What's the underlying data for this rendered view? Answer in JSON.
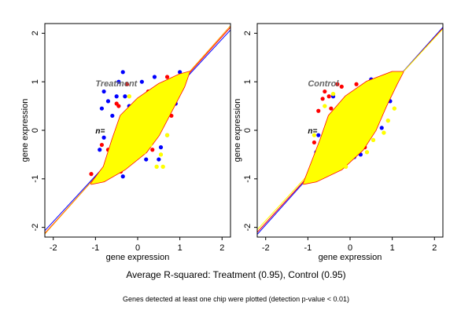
{
  "caption_main": "Average R-squared: Treatment (0.95), Control (0.95)",
  "caption_sub": "Genes detected at least one chip were plotted (detection p-value < 0.01)",
  "chart_data": [
    {
      "type": "scatter",
      "title": "Treatment",
      "annotation": "n=",
      "xlabel": "gene expression",
      "ylabel": "gene expression",
      "xlim": [
        -2.2,
        2.2
      ],
      "ylim": [
        -2.2,
        2.2
      ],
      "xticks": [
        -2,
        -1,
        0,
        1,
        2
      ],
      "yticks": [
        -2,
        -1,
        0,
        1,
        2
      ],
      "grid": false,
      "core_color": "#ffff00",
      "core_outline_color": "#ff0000",
      "core_region": [
        [
          -1.1,
          -1.1
        ],
        [
          -0.8,
          -0.75
        ],
        [
          -0.6,
          -0.2
        ],
        [
          -0.4,
          0.3
        ],
        [
          0,
          0.65
        ],
        [
          0.5,
          0.95
        ],
        [
          1.0,
          1.15
        ],
        [
          1.22,
          1.2
        ],
        [
          1.1,
          0.9
        ],
        [
          0.8,
          0.4
        ],
        [
          0.5,
          -0.1
        ],
        [
          0.2,
          -0.45
        ],
        [
          -0.3,
          -0.8
        ],
        [
          -0.8,
          -1.05
        ]
      ],
      "series": [
        {
          "color": "#0000ff",
          "points": [
            [
              -0.35,
              1.2
            ],
            [
              -0.45,
              1.0
            ],
            [
              -0.8,
              0.8
            ],
            [
              -0.7,
              0.6
            ],
            [
              -0.85,
              0.45
            ],
            [
              -0.5,
              0.7
            ],
            [
              -0.3,
              0.7
            ],
            [
              -0.6,
              0.3
            ],
            [
              -0.8,
              -0.15
            ],
            [
              -0.9,
              -0.4
            ],
            [
              -0.6,
              -0.75
            ],
            [
              -0.35,
              -0.95
            ],
            [
              -0.4,
              -0.7
            ],
            [
              0.5,
              -0.6
            ],
            [
              0.7,
              -0.1
            ],
            [
              0.55,
              -0.35
            ],
            [
              1.0,
              1.2
            ],
            [
              0.8,
              0.7
            ],
            [
              0.1,
              1.0
            ],
            [
              0.4,
              1.1
            ],
            [
              0.9,
              0.55
            ],
            [
              -0.2,
              0.5
            ],
            [
              0.2,
              -0.6
            ],
            [
              -0.55,
              -0.5
            ]
          ]
        },
        {
          "color": "#ff0000",
          "points": [
            [
              -0.25,
              0.95
            ],
            [
              -0.5,
              0.55
            ],
            [
              -0.85,
              -0.3
            ],
            [
              -1.1,
              -0.9
            ],
            [
              -0.4,
              -0.85
            ],
            [
              0.0,
              -0.25
            ],
            [
              0.7,
              1.1
            ],
            [
              0.25,
              0.8
            ],
            [
              0.8,
              0.3
            ],
            [
              -0.7,
              -0.4
            ],
            [
              0.35,
              -0.4
            ],
            [
              -0.45,
              0.5
            ]
          ]
        },
        {
          "color": "#ffff00",
          "points": [
            [
              0.6,
              -0.75
            ],
            [
              0.45,
              -0.75
            ],
            [
              0.15,
              -0.45
            ],
            [
              -0.2,
              0.7
            ],
            [
              0.7,
              -0.1
            ],
            [
              -0.05,
              -0.5
            ],
            [
              0.55,
              -0.5
            ],
            [
              0.3,
              -0.3
            ]
          ]
        }
      ],
      "lines": [
        {
          "color": "#0000ff",
          "slope": 0.94,
          "intercept": 0
        },
        {
          "color": "#ff0000",
          "slope": 0.965,
          "intercept": 0
        },
        {
          "color": "#ffa500",
          "slope": 0.975,
          "intercept": 0.01
        }
      ]
    },
    {
      "type": "scatter",
      "title": "Control",
      "annotation": "n=",
      "xlabel": "gene expression",
      "ylabel": "gene expression",
      "xlim": [
        -2.2,
        2.2
      ],
      "ylim": [
        -2.2,
        2.2
      ],
      "xticks": [
        -2,
        -1,
        0,
        1,
        2
      ],
      "yticks": [
        -2,
        -1,
        0,
        1,
        2
      ],
      "grid": false,
      "core_color": "#ffff00",
      "core_outline_color": "#ff0000",
      "core_region": [
        [
          -1.1,
          -1.1
        ],
        [
          -0.9,
          -0.65
        ],
        [
          -0.7,
          -0.2
        ],
        [
          -0.5,
          0.3
        ],
        [
          -0.1,
          0.7
        ],
        [
          0.4,
          1.0
        ],
        [
          1.0,
          1.2
        ],
        [
          1.25,
          1.2
        ],
        [
          1.1,
          0.95
        ],
        [
          0.85,
          0.5
        ],
        [
          0.6,
          0.0
        ],
        [
          0.3,
          -0.4
        ],
        [
          -0.2,
          -0.8
        ],
        [
          -0.8,
          -1.05
        ]
      ],
      "series": [
        {
          "color": "#ff0000",
          "points": [
            [
              -0.6,
              0.8
            ],
            [
              -0.5,
              0.7
            ],
            [
              -0.75,
              0.4
            ],
            [
              -0.65,
              0.65
            ],
            [
              -0.3,
              0.95
            ],
            [
              -0.2,
              0.9
            ],
            [
              -0.45,
              0.45
            ],
            [
              0.15,
              0.95
            ],
            [
              -0.85,
              -0.25
            ],
            [
              -0.7,
              -0.5
            ],
            [
              -0.35,
              -0.6
            ],
            [
              0.35,
              -0.35
            ],
            [
              0.6,
              0.4
            ],
            [
              0.3,
              0.9
            ]
          ]
        },
        {
          "color": "#0000ff",
          "points": [
            [
              0.5,
              1.05
            ],
            [
              -0.75,
              -0.1
            ],
            [
              -0.8,
              -0.45
            ],
            [
              0.25,
              -0.5
            ],
            [
              0.1,
              -0.55
            ],
            [
              0.75,
              0.05
            ],
            [
              -0.3,
              -0.75
            ],
            [
              0.95,
              0.6
            ],
            [
              -0.4,
              0.7
            ],
            [
              0.65,
              0.3
            ]
          ]
        },
        {
          "color": "#ffff00",
          "points": [
            [
              -0.1,
              -0.75
            ],
            [
              0.4,
              -0.45
            ],
            [
              0.55,
              -0.2
            ],
            [
              0.8,
              -0.05
            ],
            [
              0.9,
              0.2
            ],
            [
              1.05,
              0.45
            ],
            [
              -0.6,
              0.5
            ],
            [
              -0.85,
              -0.1
            ],
            [
              -0.4,
              0.75
            ],
            [
              0.3,
              -0.15
            ]
          ]
        }
      ],
      "lines": [
        {
          "color": "#0000ff",
          "slope": 0.97,
          "intercept": -0.01
        },
        {
          "color": "#ff0000",
          "slope": 0.955,
          "intercept": 0
        },
        {
          "color": "#ffff00",
          "slope": 0.94,
          "intercept": 0.02
        }
      ]
    }
  ]
}
